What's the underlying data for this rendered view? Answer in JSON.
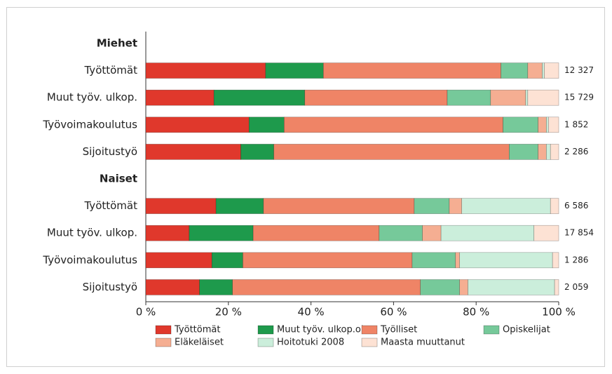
{
  "chart_data": {
    "type": "stacked-bar-horizontal",
    "categories": [
      "Miehet",
      "Työttömät",
      "Muut työv. ulkop.",
      "Työvoimakoulutus",
      "Sijoitustyö",
      "Naiset",
      "Työttömät",
      "Muut työv. ulkop.",
      "Työvoimakoulutus",
      "Sijoitustyö"
    ],
    "row_totals": [
      null,
      "12 327",
      "15 729",
      "1 852",
      "2 286",
      null,
      "6 586",
      "17 854",
      "1 286",
      "2 059"
    ],
    "series": [
      {
        "name": "Työttömät",
        "color": "#e0382c",
        "values": [
          null,
          29,
          16.5,
          25,
          23,
          null,
          17,
          10.5,
          16,
          13
        ]
      },
      {
        "name": "Muut työv. ulkop.ol.",
        "color": "#1e9a4c",
        "values": [
          null,
          14,
          22,
          8.5,
          8,
          null,
          11.5,
          15.5,
          7.5,
          8
        ]
      },
      {
        "name": "Työlliset",
        "color": "#ef8466",
        "values": [
          null,
          43,
          34.5,
          53,
          57,
          null,
          36.5,
          30.5,
          41,
          45.5
        ]
      },
      {
        "name": "Opiskelijat",
        "color": "#76c99a",
        "values": [
          null,
          6.5,
          10.5,
          8.5,
          7,
          null,
          8.5,
          10.5,
          10.5,
          9.5
        ]
      },
      {
        "name": "Eläkeläiset",
        "color": "#f5ae92",
        "values": [
          null,
          3.5,
          8.5,
          2,
          2,
          null,
          3,
          4.5,
          1,
          2
        ]
      },
      {
        "name": "Hoitotuki 2008",
        "color": "#cbeedb",
        "values": [
          null,
          0.5,
          0.5,
          0.5,
          1,
          null,
          21.5,
          22.5,
          22.5,
          21
        ]
      },
      {
        "name": "Maasta muuttanut",
        "color": "#fde2d4",
        "values": [
          null,
          3.5,
          7.5,
          2.5,
          2,
          null,
          2,
          6,
          1.5,
          1
        ]
      }
    ],
    "xlim": [
      0,
      100
    ],
    "xticks": [
      {
        "value": 0,
        "label": "0 %"
      },
      {
        "value": 20,
        "label": "20 %"
      },
      {
        "value": 40,
        "label": "40 %"
      },
      {
        "value": 60,
        "label": "60 %"
      },
      {
        "value": 80,
        "label": "80 %"
      },
      {
        "value": 100,
        "label": "100 %"
      }
    ],
    "legend": "bottom"
  }
}
